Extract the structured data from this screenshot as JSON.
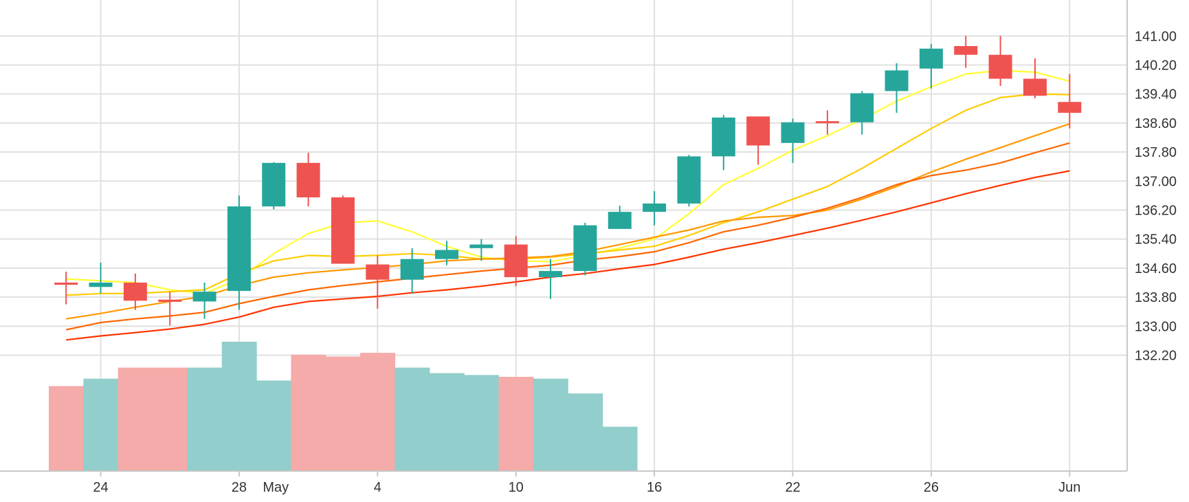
{
  "chart_data": {
    "type": "candlestick",
    "colors": {
      "up": "#26a69a",
      "down": "#ef5350",
      "volume_up": "#92cecb",
      "volume_down": "#f5aba9",
      "grid": "#e0e0e0",
      "axis": "#c8c8c8",
      "text": "#333333",
      "ma_lines": [
        "#ffff33",
        "#ffcc00",
        "#ff9900",
        "#ff6600",
        "#ff3300"
      ]
    },
    "y_axis": {
      "range": [
        131.2,
        141.6
      ],
      "ticks": [
        "141.00",
        "140.20",
        "139.40",
        "138.60",
        "137.80",
        "137.00",
        "136.20",
        "135.40",
        "134.60",
        "133.80",
        "133.00",
        "132.20"
      ],
      "position": "right"
    },
    "x_axis": {
      "range": [
        -1.3,
        31.2
      ],
      "ticks": [
        {
          "label": "24",
          "t": 0
        },
        {
          "label": "28",
          "t": 4
        },
        {
          "label": "May",
          "t": 5
        },
        {
          "label": "4",
          "t": 8
        },
        {
          "label": "10",
          "t": 12
        },
        {
          "label": "16",
          "t": 16
        },
        {
          "label": "22",
          "t": 20
        },
        {
          "label": "26",
          "t": 24
        },
        {
          "label": "Jun",
          "t": 28
        }
      ]
    },
    "grid": true,
    "candles": [
      {
        "t": -1,
        "open": 134.2,
        "high": 134.5,
        "low": 133.6,
        "close": 134.14
      },
      {
        "t": 0,
        "open": 134.08,
        "high": 134.75,
        "low": 133.9,
        "close": 134.2
      },
      {
        "t": 1,
        "open": 134.2,
        "high": 134.45,
        "low": 133.45,
        "close": 133.7
      },
      {
        "t": 2,
        "open": 133.73,
        "high": 133.95,
        "low": 133.02,
        "close": 133.67
      },
      {
        "t": 3,
        "open": 133.68,
        "high": 134.2,
        "low": 133.2,
        "close": 133.95
      },
      {
        "t": 4,
        "open": 133.97,
        "high": 136.6,
        "low": 133.45,
        "close": 136.3
      },
      {
        "t": 5,
        "open": 136.3,
        "high": 137.52,
        "low": 136.22,
        "close": 137.5
      },
      {
        "t": 6,
        "open": 137.5,
        "high": 137.78,
        "low": 136.3,
        "close": 136.55
      },
      {
        "t": 7,
        "open": 136.55,
        "high": 136.6,
        "low": 134.72,
        "close": 134.72
      },
      {
        "t": 8,
        "open": 134.7,
        "high": 134.95,
        "low": 133.48,
        "close": 134.28
      },
      {
        "t": 9,
        "open": 134.28,
        "high": 135.15,
        "low": 133.9,
        "close": 134.85
      },
      {
        "t": 10,
        "open": 134.85,
        "high": 135.35,
        "low": 134.68,
        "close": 135.1
      },
      {
        "t": 11,
        "open": 135.15,
        "high": 135.4,
        "low": 134.8,
        "close": 135.25
      },
      {
        "t": 12,
        "open": 135.25,
        "high": 135.48,
        "low": 134.1,
        "close": 134.35
      },
      {
        "t": 13,
        "open": 134.35,
        "high": 134.85,
        "low": 133.75,
        "close": 134.52
      },
      {
        "t": 14,
        "open": 134.52,
        "high": 135.85,
        "low": 134.4,
        "close": 135.78
      },
      {
        "t": 15,
        "open": 135.68,
        "high": 136.32,
        "low": 135.68,
        "close": 136.15
      },
      {
        "t": 16,
        "open": 136.15,
        "high": 136.72,
        "low": 135.78,
        "close": 136.38
      },
      {
        "t": 17,
        "open": 136.38,
        "high": 137.72,
        "low": 136.3,
        "close": 137.68
      },
      {
        "t": 18,
        "open": 137.68,
        "high": 138.82,
        "low": 137.3,
        "close": 138.75
      },
      {
        "t": 19,
        "open": 138.78,
        "high": 138.78,
        "low": 137.45,
        "close": 137.98
      },
      {
        "t": 20,
        "open": 138.05,
        "high": 138.72,
        "low": 137.5,
        "close": 138.62
      },
      {
        "t": 21,
        "open": 138.65,
        "high": 138.95,
        "low": 138.28,
        "close": 138.62
      },
      {
        "t": 22,
        "open": 138.62,
        "high": 139.48,
        "low": 138.28,
        "close": 139.42
      },
      {
        "t": 23,
        "open": 139.48,
        "high": 140.25,
        "low": 138.88,
        "close": 140.05
      },
      {
        "t": 24,
        "open": 140.1,
        "high": 140.78,
        "low": 139.55,
        "close": 140.65
      },
      {
        "t": 25,
        "open": 140.72,
        "high": 141.0,
        "low": 140.12,
        "close": 140.48
      },
      {
        "t": 26,
        "open": 140.48,
        "high": 141.0,
        "low": 139.62,
        "close": 139.82
      },
      {
        "t": 27,
        "open": 139.82,
        "high": 140.38,
        "low": 139.28,
        "close": 139.35
      },
      {
        "t": 28,
        "open": 139.18,
        "high": 139.95,
        "low": 138.45,
        "close": 138.88
      }
    ],
    "volume": [
      {
        "t": -1,
        "value": 4.6,
        "dir": "down"
      },
      {
        "t": 0,
        "value": 5.0,
        "dir": "up"
      },
      {
        "t": 1,
        "value": 5.6,
        "dir": "down"
      },
      {
        "t": 2,
        "value": 5.6,
        "dir": "down"
      },
      {
        "t": 3,
        "value": 5.6,
        "dir": "up"
      },
      {
        "t": 4,
        "value": 7.0,
        "dir": "up"
      },
      {
        "t": 5,
        "value": 4.9,
        "dir": "up"
      },
      {
        "t": 6,
        "value": 6.3,
        "dir": "down"
      },
      {
        "t": 7,
        "value": 6.2,
        "dir": "down"
      },
      {
        "t": 8,
        "value": 6.4,
        "dir": "down"
      },
      {
        "t": 9,
        "value": 5.6,
        "dir": "up"
      },
      {
        "t": 10,
        "value": 5.3,
        "dir": "up"
      },
      {
        "t": 11,
        "value": 5.2,
        "dir": "up"
      },
      {
        "t": 12,
        "value": 5.1,
        "dir": "down"
      },
      {
        "t": 13,
        "value": 5.0,
        "dir": "up"
      },
      {
        "t": 14,
        "value": 4.2,
        "dir": "up"
      },
      {
        "t": 15,
        "value": 2.4,
        "dir": "up"
      }
    ],
    "volume_max": 25.5,
    "series": [
      {
        "color": "#ffff33",
        "points": [
          [
            -1,
            134.3
          ],
          [
            0,
            134.25
          ],
          [
            1,
            134.2
          ],
          [
            2,
            134.0
          ],
          [
            3,
            133.9
          ],
          [
            4,
            134.3
          ],
          [
            5,
            135.0
          ],
          [
            6,
            135.55
          ],
          [
            7,
            135.85
          ],
          [
            8,
            135.9
          ],
          [
            9,
            135.6
          ],
          [
            10,
            135.2
          ],
          [
            11,
            134.9
          ],
          [
            12,
            134.8
          ],
          [
            13,
            134.78
          ],
          [
            14,
            134.95
          ],
          [
            15,
            135.15
          ],
          [
            16,
            135.4
          ],
          [
            17,
            136.1
          ],
          [
            18,
            136.9
          ],
          [
            19,
            137.35
          ],
          [
            20,
            137.85
          ],
          [
            21,
            138.25
          ],
          [
            22,
            138.7
          ],
          [
            23,
            139.2
          ],
          [
            24,
            139.6
          ],
          [
            25,
            139.95
          ],
          [
            26,
            140.05
          ],
          [
            27,
            140.0
          ],
          [
            28,
            139.75
          ]
        ]
      },
      {
        "color": "#ffcc00",
        "points": [
          [
            -1,
            133.85
          ],
          [
            0,
            133.9
          ],
          [
            1,
            133.9
          ],
          [
            2,
            133.95
          ],
          [
            3,
            134.0
          ],
          [
            4,
            134.45
          ],
          [
            5,
            134.8
          ],
          [
            6,
            134.95
          ],
          [
            7,
            134.92
          ],
          [
            8,
            134.95
          ],
          [
            9,
            135.0
          ],
          [
            10,
            134.95
          ],
          [
            11,
            134.85
          ],
          [
            12,
            134.85
          ],
          [
            13,
            134.9
          ],
          [
            14,
            135.0
          ],
          [
            15,
            135.1
          ],
          [
            16,
            135.2
          ],
          [
            17,
            135.5
          ],
          [
            18,
            135.85
          ],
          [
            19,
            136.15
          ],
          [
            20,
            136.5
          ],
          [
            21,
            136.85
          ],
          [
            22,
            137.35
          ],
          [
            23,
            137.9
          ],
          [
            24,
            138.45
          ],
          [
            25,
            138.95
          ],
          [
            26,
            139.3
          ],
          [
            27,
            139.4
          ],
          [
            28,
            139.38
          ]
        ]
      },
      {
        "color": "#ff9900",
        "points": [
          [
            -1,
            133.2
          ],
          [
            0,
            133.35
          ],
          [
            1,
            133.52
          ],
          [
            2,
            133.68
          ],
          [
            3,
            133.82
          ],
          [
            4,
            134.12
          ],
          [
            5,
            134.35
          ],
          [
            6,
            134.47
          ],
          [
            7,
            134.55
          ],
          [
            8,
            134.62
          ],
          [
            9,
            134.7
          ],
          [
            10,
            134.8
          ],
          [
            11,
            134.85
          ],
          [
            12,
            134.88
          ],
          [
            13,
            134.92
          ],
          [
            14,
            135.05
          ],
          [
            15,
            135.25
          ],
          [
            16,
            135.45
          ],
          [
            17,
            135.65
          ],
          [
            18,
            135.9
          ],
          [
            19,
            136.0
          ],
          [
            20,
            136.05
          ],
          [
            21,
            136.2
          ],
          [
            22,
            136.5
          ],
          [
            23,
            136.85
          ],
          [
            24,
            137.25
          ],
          [
            25,
            137.6
          ],
          [
            26,
            137.92
          ],
          [
            27,
            138.25
          ],
          [
            28,
            138.58
          ]
        ]
      },
      {
        "color": "#ff6600",
        "points": [
          [
            -1,
            132.9
          ],
          [
            0,
            133.1
          ],
          [
            1,
            133.2
          ],
          [
            2,
            133.28
          ],
          [
            3,
            133.38
          ],
          [
            4,
            133.62
          ],
          [
            5,
            133.82
          ],
          [
            6,
            134.0
          ],
          [
            7,
            134.12
          ],
          [
            8,
            134.22
          ],
          [
            9,
            134.32
          ],
          [
            10,
            134.42
          ],
          [
            11,
            134.52
          ],
          [
            12,
            134.6
          ],
          [
            13,
            134.68
          ],
          [
            14,
            134.82
          ],
          [
            15,
            134.92
          ],
          [
            16,
            135.05
          ],
          [
            17,
            135.3
          ],
          [
            18,
            135.6
          ],
          [
            19,
            135.78
          ],
          [
            20,
            136.0
          ],
          [
            21,
            136.25
          ],
          [
            22,
            136.55
          ],
          [
            23,
            136.9
          ],
          [
            24,
            137.15
          ],
          [
            25,
            137.3
          ],
          [
            26,
            137.5
          ],
          [
            27,
            137.78
          ],
          [
            28,
            138.05
          ]
        ]
      },
      {
        "color": "#ff3300",
        "points": [
          [
            -1,
            132.62
          ],
          [
            0,
            132.73
          ],
          [
            1,
            132.82
          ],
          [
            2,
            132.92
          ],
          [
            3,
            133.05
          ],
          [
            4,
            133.25
          ],
          [
            5,
            133.52
          ],
          [
            6,
            133.68
          ],
          [
            7,
            133.75
          ],
          [
            8,
            133.82
          ],
          [
            9,
            133.92
          ],
          [
            10,
            134.0
          ],
          [
            11,
            134.1
          ],
          [
            12,
            134.22
          ],
          [
            13,
            134.35
          ],
          [
            14,
            134.45
          ],
          [
            15,
            134.58
          ],
          [
            16,
            134.7
          ],
          [
            17,
            134.9
          ],
          [
            18,
            135.12
          ],
          [
            19,
            135.3
          ],
          [
            20,
            135.5
          ],
          [
            21,
            135.7
          ],
          [
            22,
            135.92
          ],
          [
            23,
            136.15
          ],
          [
            24,
            136.4
          ],
          [
            25,
            136.65
          ],
          [
            26,
            136.88
          ],
          [
            27,
            137.1
          ],
          [
            28,
            137.28
          ]
        ]
      }
    ]
  }
}
